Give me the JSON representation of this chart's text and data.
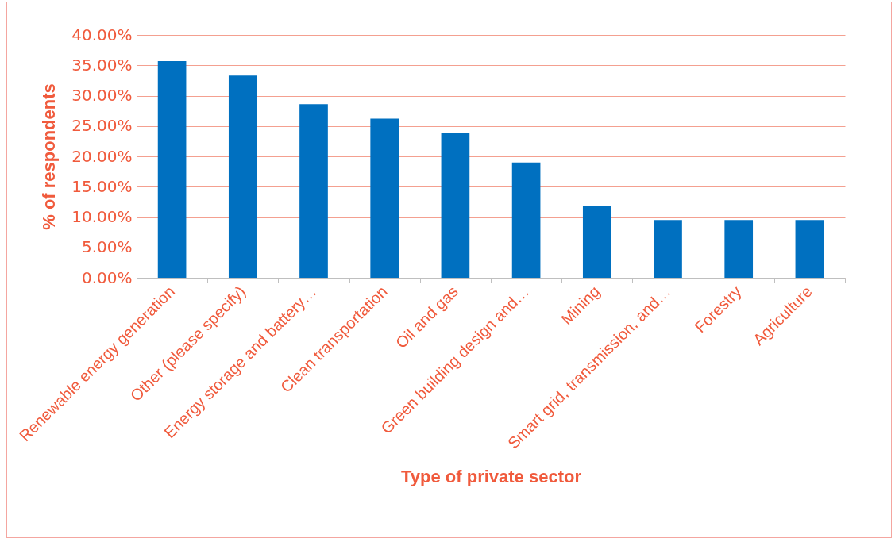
{
  "chart_data": {
    "type": "bar",
    "xlabel": "Type of private sector",
    "ylabel": "% of respondents",
    "categories": [
      "Renewable energy generation",
      "Other (please specify)",
      "Energy storage and battery…",
      "Clean transportation",
      "Oil and gas",
      "Green building design and…",
      "Mining",
      "Smart grid, transmission, and…",
      "Forestry",
      "Agriculture"
    ],
    "values": [
      35.7,
      33.3,
      28.6,
      26.2,
      23.8,
      19.0,
      11.9,
      9.5,
      9.5,
      9.5
    ],
    "color": "#0070c0",
    "ylim": [
      0,
      40
    ],
    "yticks": [
      {
        "value": 0,
        "label": "0.00%"
      },
      {
        "value": 5,
        "label": "5.00%"
      },
      {
        "value": 10,
        "label": "10.00%"
      },
      {
        "value": 15,
        "label": "15.00%"
      },
      {
        "value": 20,
        "label": "20.00%"
      },
      {
        "value": 25,
        "label": "25.00%"
      },
      {
        "value": 30,
        "label": "30.00%"
      },
      {
        "value": 35,
        "label": "35.00%"
      },
      {
        "value": 40,
        "label": "40.00%"
      }
    ],
    "grid": "y"
  }
}
